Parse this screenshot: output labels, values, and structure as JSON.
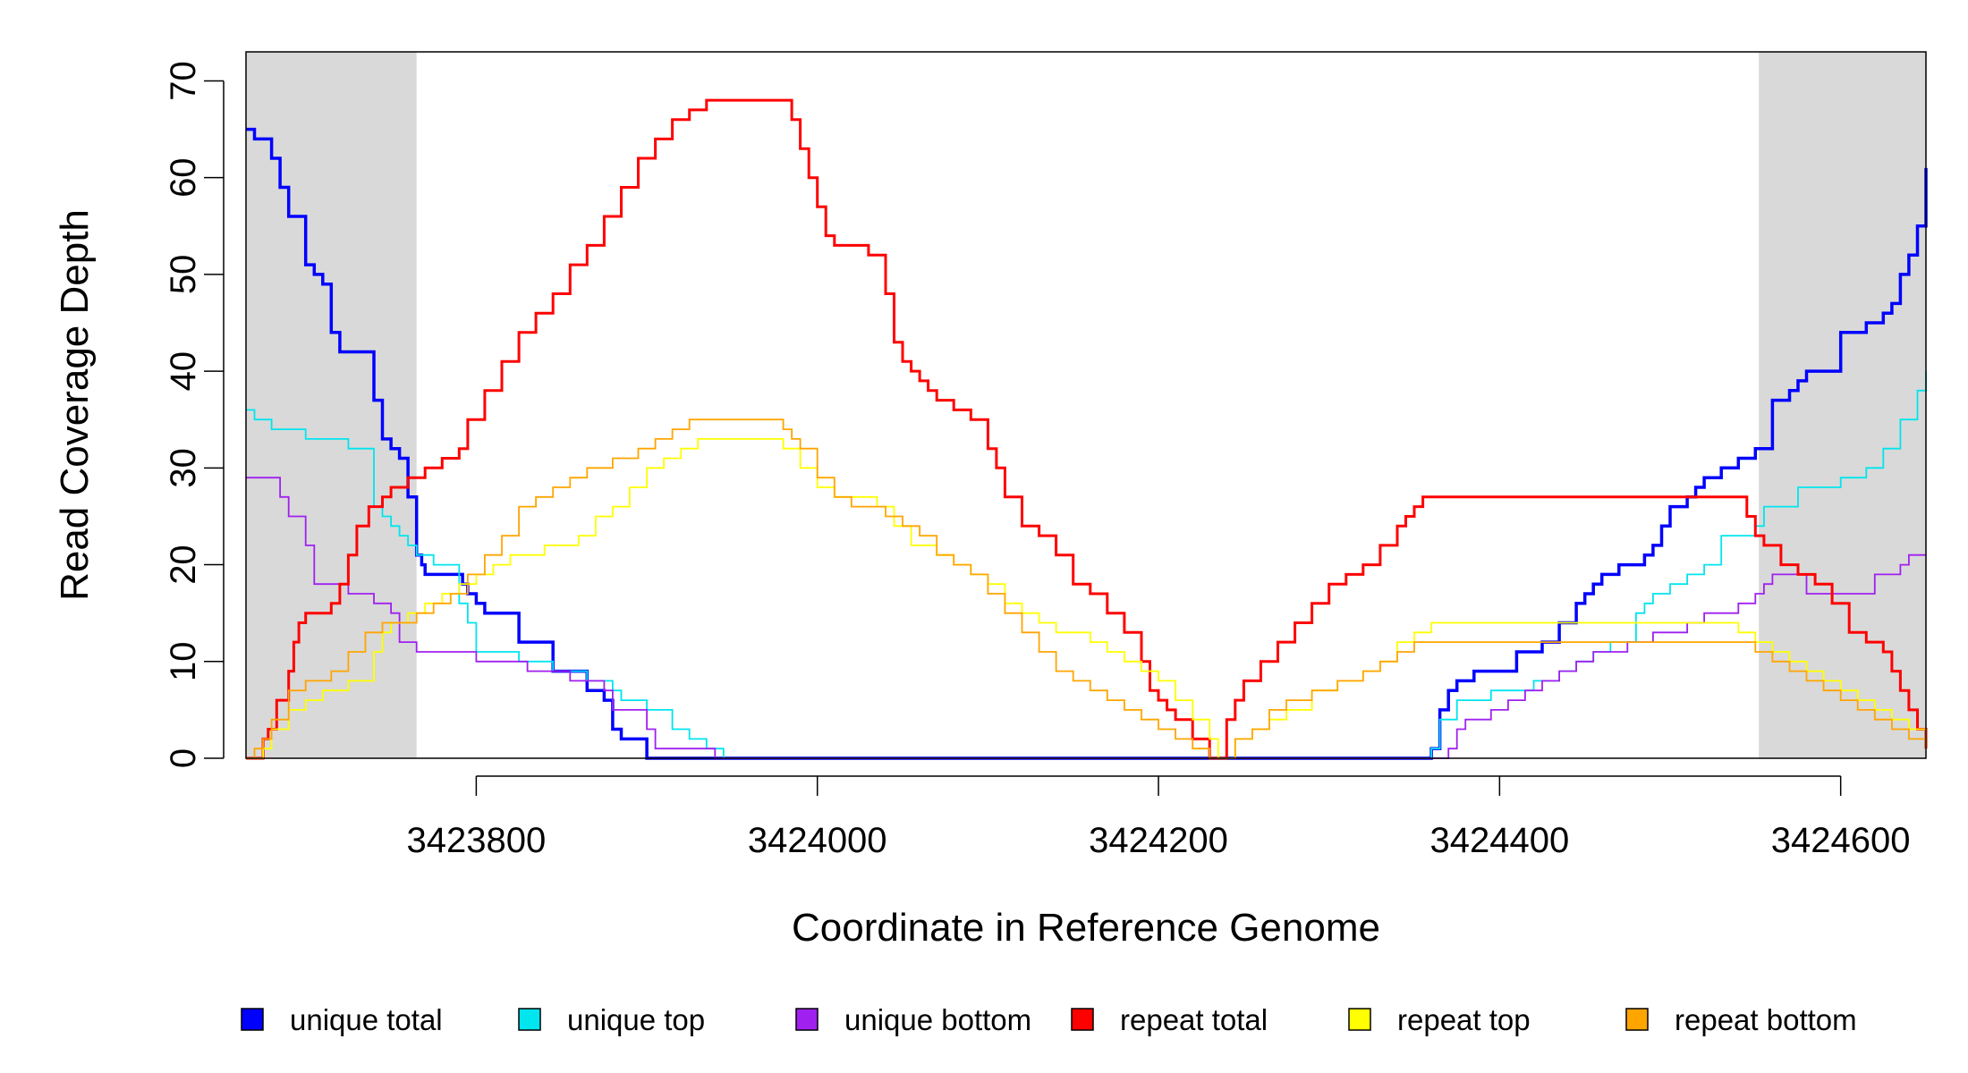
{
  "chart_data": {
    "type": "line",
    "title": "",
    "xlabel": "Coordinate in Reference Genome",
    "ylabel": "Read Coverage Depth",
    "xlim": [
      3423665,
      3424650
    ],
    "ylim": [
      0,
      73
    ],
    "x_ticks": [
      3423800,
      3424000,
      3424200,
      3424400,
      3424600
    ],
    "x_tick_labels": [
      "3423800",
      "3424000",
      "3424200",
      "3424400",
      "3424600"
    ],
    "y_ticks": [
      0,
      10,
      20,
      30,
      40,
      50,
      60,
      70
    ],
    "y_tick_labels": [
      "0",
      "10",
      "20",
      "30",
      "40",
      "50",
      "60",
      "70"
    ],
    "shaded_regions": [
      {
        "from": 3423665,
        "to": 3423765,
        "color": "#d9d9d9"
      },
      {
        "from": 3424552,
        "to": 3424650,
        "color": "#d9d9d9"
      }
    ],
    "grid": false,
    "legend_position": "bottom",
    "series": [
      {
        "name": "unique total",
        "color": "#0000ff",
        "step": true,
        "width": 3.5,
        "x": [
          3423665,
          3423670,
          3423680,
          3423685,
          3423690,
          3423700,
          3423705,
          3423710,
          3423715,
          3423720,
          3423740,
          3423745,
          3423750,
          3423755,
          3423760,
          3423765,
          3423768,
          3423770,
          3423792,
          3423795,
          3423800,
          3423805,
          3423825,
          3423845,
          3423865,
          3423875,
          3423880,
          3423885,
          3423900,
          3423910,
          3423920,
          3423930,
          3423935,
          3423940,
          3423950,
          3424360,
          3424365,
          3424370,
          3424375,
          3424385,
          3424400,
          3424410,
          3424425,
          3424435,
          3424445,
          3424450,
          3424455,
          3424460,
          3424465,
          3424470,
          3424485,
          3424490,
          3424495,
          3424500,
          3424510,
          3424515,
          3424520,
          3424530,
          3424540,
          3424545,
          3424550,
          3424560,
          3424570,
          3424575,
          3424580,
          3424600,
          3424615,
          3424625,
          3424630,
          3424635,
          3424640,
          3424645,
          3424650
        ],
        "y": [
          65,
          64,
          62,
          59,
          56,
          51,
          50,
          49,
          44,
          42,
          37,
          33,
          32,
          31,
          27,
          21,
          20,
          19,
          18,
          17,
          16,
          15,
          12,
          9,
          7,
          6,
          3,
          2,
          0,
          0,
          0,
          0,
          0,
          0,
          0,
          1,
          5,
          7,
          8,
          9,
          9,
          11,
          12,
          14,
          16,
          17,
          18,
          19,
          19,
          20,
          21,
          22,
          24,
          26,
          27,
          28,
          29,
          30,
          31,
          31,
          32,
          37,
          38,
          39,
          40,
          44,
          45,
          46,
          47,
          50,
          52,
          55,
          61
        ]
      },
      {
        "name": "unique top",
        "color": "#00e5ee",
        "step": true,
        "width": 1.8,
        "x": [
          3423665,
          3423670,
          3423680,
          3423700,
          3423725,
          3423740,
          3423745,
          3423750,
          3423755,
          3423760,
          3423765,
          3423775,
          3423790,
          3423795,
          3423800,
          3423825,
          3423845,
          3423865,
          3423880,
          3423885,
          3423900,
          3423915,
          3423925,
          3423935,
          3423945,
          3423950,
          3424360,
          3424365,
          3424375,
          3424395,
          3424420,
          3424435,
          3424445,
          3424455,
          3424465,
          3424480,
          3424485,
          3424490,
          3424500,
          3424510,
          3424520,
          3424530,
          3424540,
          3424550,
          3424555,
          3424575,
          3424600,
          3424615,
          3424625,
          3424635,
          3424645,
          3424650
        ],
        "y": [
          36,
          35,
          34,
          33,
          32,
          26,
          25,
          24,
          23,
          22,
          21,
          20,
          16,
          14,
          11,
          10,
          9,
          8,
          7,
          6,
          5,
          3,
          2,
          1,
          0,
          0,
          1,
          4,
          6,
          7,
          8,
          9,
          10,
          11,
          12,
          15,
          16,
          17,
          18,
          19,
          20,
          23,
          23,
          24,
          26,
          28,
          29,
          30,
          32,
          35,
          38,
          40
        ]
      },
      {
        "name": "unique bottom",
        "color": "#a020f0",
        "step": true,
        "width": 1.8,
        "x": [
          3423665,
          3423685,
          3423690,
          3423700,
          3423705,
          3423725,
          3423740,
          3423750,
          3423755,
          3423765,
          3423800,
          3423830,
          3423855,
          3423875,
          3423880,
          3423900,
          3423905,
          3423940,
          3424370,
          3424375,
          3424380,
          3424395,
          3424405,
          3424415,
          3424425,
          3424435,
          3424445,
          3424455,
          3424465,
          3424475,
          3424485,
          3424490,
          3424500,
          3424510,
          3424520,
          3424530,
          3424540,
          3424545,
          3424550,
          3424555,
          3424560,
          3424570,
          3424580,
          3424620,
          3424635,
          3424640,
          3424645,
          3424650
        ],
        "y": [
          29,
          27,
          25,
          22,
          18,
          17,
          16,
          15,
          12,
          11,
          10,
          9,
          8,
          7,
          5,
          3,
          1,
          0,
          1,
          3,
          4,
          5,
          6,
          7,
          8,
          9,
          10,
          11,
          11,
          12,
          12,
          13,
          13,
          14,
          15,
          15,
          16,
          16,
          17,
          18,
          19,
          19,
          17,
          19,
          20,
          21,
          21,
          21
        ]
      },
      {
        "name": "repeat total",
        "color": "#ff0000",
        "step": true,
        "width": 3.0,
        "x": [
          3423665,
          3423675,
          3423678,
          3423683,
          3423690,
          3423693,
          3423696,
          3423700,
          3423715,
          3423720,
          3423725,
          3423730,
          3423737,
          3423745,
          3423750,
          3423760,
          3423770,
          3423780,
          3423790,
          3423795,
          3423805,
          3423815,
          3423825,
          3423835,
          3423845,
          3423855,
          3423865,
          3423875,
          3423885,
          3423895,
          3423905,
          3423915,
          3423925,
          3423935,
          3423940,
          3423945,
          3423960,
          3423975,
          3423985,
          3423990,
          3423995,
          3424000,
          3424005,
          3424010,
          3424015,
          3424030,
          3424040,
          3424045,
          3424050,
          3424055,
          3424060,
          3424065,
          3424070,
          3424080,
          3424090,
          3424100,
          3424105,
          3424110,
          3424120,
          3424130,
          3424140,
          3424150,
          3424160,
          3424170,
          3424180,
          3424190,
          3424195,
          3424200,
          3424205,
          3424210,
          3424220,
          3424230,
          3424235,
          3424240,
          3424245,
          3424250,
          3424260,
          3424270,
          3424280,
          3424290,
          3424300,
          3424310,
          3424320,
          3424330,
          3424340,
          3424345,
          3424350,
          3424355,
          3424360,
          3424400,
          3424450,
          3424500,
          3424530,
          3424545,
          3424550,
          3424555,
          3424565,
          3424575,
          3424585,
          3424595,
          3424605,
          3424615,
          3424625,
          3424630,
          3424635,
          3424640,
          3424645,
          3424650
        ],
        "y": [
          0,
          2,
          3,
          6,
          9,
          12,
          14,
          15,
          16,
          18,
          21,
          24,
          26,
          27,
          28,
          29,
          30,
          31,
          32,
          35,
          38,
          41,
          44,
          46,
          48,
          51,
          53,
          56,
          59,
          62,
          64,
          66,
          67,
          68,
          68,
          68,
          68,
          68,
          66,
          63,
          60,
          57,
          54,
          53,
          53,
          52,
          48,
          43,
          41,
          40,
          39,
          38,
          37,
          36,
          35,
          32,
          30,
          27,
          24,
          23,
          21,
          18,
          17,
          15,
          13,
          10,
          7,
          6,
          5,
          4,
          2,
          0,
          0,
          4,
          6,
          8,
          10,
          12,
          14,
          16,
          18,
          19,
          20,
          22,
          24,
          25,
          26,
          27,
          27,
          27,
          27,
          27,
          27,
          25,
          23,
          22,
          20,
          19,
          18,
          16,
          13,
          12,
          11,
          9,
          7,
          5,
          3,
          1
        ]
      },
      {
        "name": "repeat top",
        "color": "#ffff00",
        "step": true,
        "width": 1.8,
        "x": [
          3423665,
          3423675,
          3423680,
          3423690,
          3423700,
          3423710,
          3423725,
          3423740,
          3423745,
          3423750,
          3423760,
          3423770,
          3423780,
          3423790,
          3423800,
          3423810,
          3423820,
          3423830,
          3423840,
          3423860,
          3423870,
          3423880,
          3423890,
          3423900,
          3423910,
          3423920,
          3423930,
          3423950,
          3423970,
          3423980,
          3423990,
          3424000,
          3424010,
          3424020,
          3424035,
          3424045,
          3424055,
          3424070,
          3424080,
          3424090,
          3424100,
          3424110,
          3424120,
          3424130,
          3424140,
          3424150,
          3424160,
          3424170,
          3424180,
          3424190,
          3424200,
          3424210,
          3424220,
          3424230,
          3424235,
          3424245,
          3424255,
          3424265,
          3424275,
          3424290,
          3424305,
          3424320,
          3424330,
          3424340,
          3424350,
          3424360,
          3424400,
          3424450,
          3424500,
          3424520,
          3424540,
          3424550,
          3424560,
          3424570,
          3424580,
          3424590,
          3424600,
          3424610,
          3424620,
          3424630,
          3424640,
          3424650
        ],
        "y": [
          0,
          1,
          3,
          5,
          6,
          7,
          8,
          11,
          13,
          14,
          15,
          16,
          17,
          18,
          19,
          20,
          21,
          21,
          22,
          23,
          25,
          26,
          28,
          30,
          31,
          32,
          33,
          33,
          33,
          32,
          30,
          28,
          27,
          27,
          26,
          24,
          22,
          21,
          20,
          19,
          18,
          16,
          15,
          14,
          13,
          13,
          12,
          11,
          10,
          9,
          8,
          6,
          4,
          2,
          0,
          2,
          3,
          4,
          5,
          7,
          8,
          9,
          10,
          12,
          13,
          14,
          14,
          14,
          14,
          14,
          13,
          12,
          11,
          10,
          9,
          8,
          7,
          6,
          5,
          4,
          3,
          1
        ]
      },
      {
        "name": "repeat bottom",
        "color": "#ffa500",
        "step": true,
        "width": 1.8,
        "x": [
          3423665,
          3423670,
          3423675,
          3423680,
          3423690,
          3423700,
          3423715,
          3423725,
          3423735,
          3423745,
          3423765,
          3423775,
          3423785,
          3423795,
          3423805,
          3423815,
          3423825,
          3423835,
          3423845,
          3423855,
          3423865,
          3423880,
          3423895,
          3423905,
          3423915,
          3423925,
          3423935,
          3423945,
          3423960,
          3423970,
          3423980,
          3423985,
          3423990,
          3424000,
          3424010,
          3424020,
          3424030,
          3424040,
          3424050,
          3424060,
          3424070,
          3424080,
          3424090,
          3424100,
          3424110,
          3424120,
          3424130,
          3424140,
          3424150,
          3424160,
          3424170,
          3424180,
          3424190,
          3424200,
          3424210,
          3424220,
          3424230,
          3424235,
          3424245,
          3424255,
          3424265,
          3424275,
          3424290,
          3424305,
          3424320,
          3424330,
          3424340,
          3424350,
          3424360,
          3424400,
          3424450,
          3424500,
          3424520,
          3424540,
          3424550,
          3424560,
          3424570,
          3424580,
          3424590,
          3424600,
          3424610,
          3424620,
          3424630,
          3424640,
          3424650
        ],
        "y": [
          0,
          1,
          2,
          4,
          7,
          8,
          9,
          11,
          13,
          14,
          15,
          16,
          17,
          19,
          21,
          23,
          26,
          27,
          28,
          29,
          30,
          31,
          32,
          33,
          34,
          35,
          35,
          35,
          35,
          35,
          34,
          33,
          32,
          29,
          27,
          26,
          26,
          25,
          24,
          23,
          21,
          20,
          19,
          17,
          15,
          13,
          11,
          9,
          8,
          7,
          6,
          5,
          4,
          3,
          2,
          1,
          0,
          0,
          2,
          3,
          5,
          6,
          7,
          8,
          9,
          10,
          11,
          12,
          12,
          12,
          12,
          12,
          12,
          12,
          11,
          10,
          9,
          8,
          7,
          6,
          5,
          4,
          3,
          2,
          1
        ]
      }
    ]
  }
}
